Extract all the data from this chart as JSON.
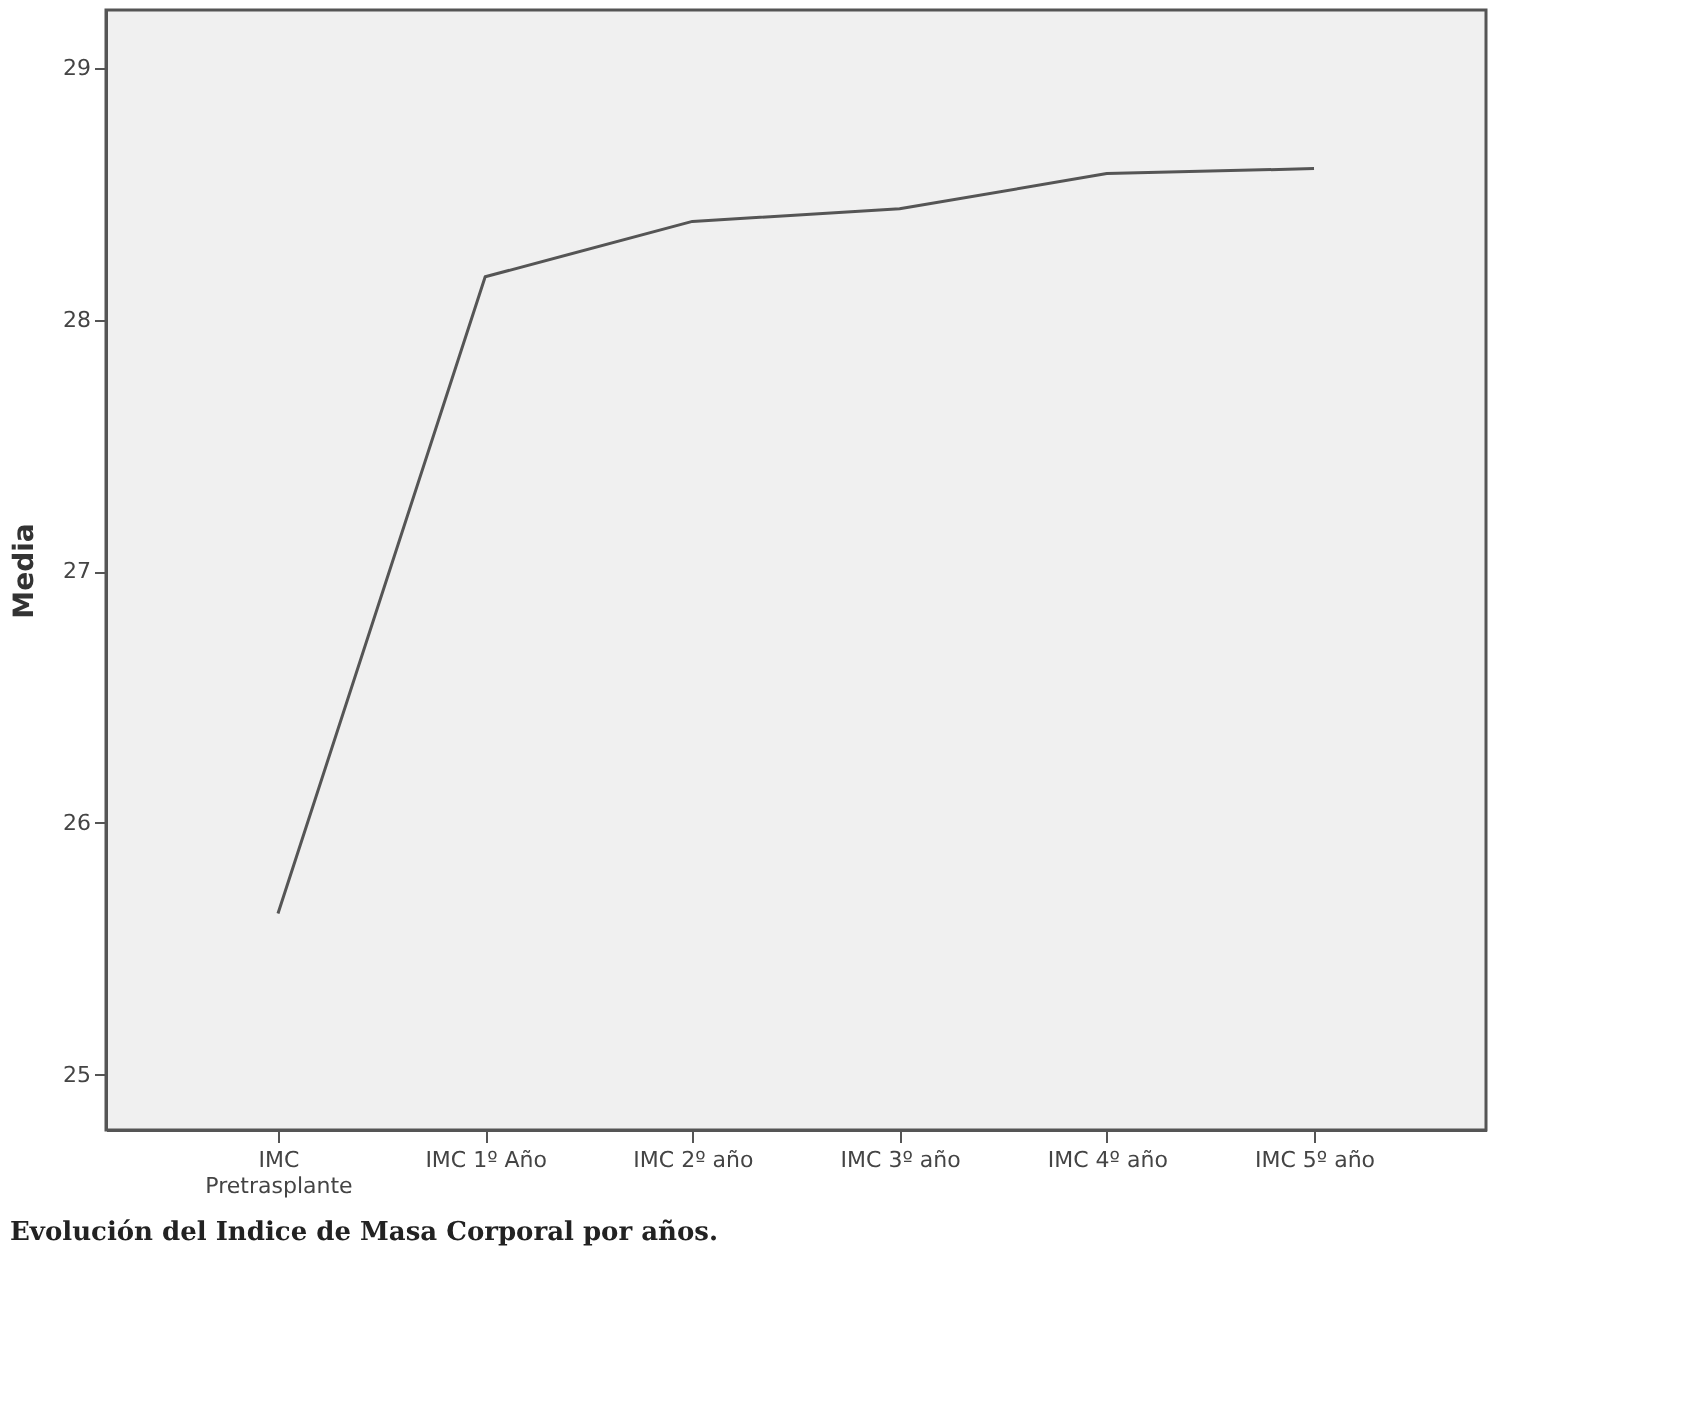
{
  "chart_data": {
    "type": "line",
    "title": "Evolución del Indice de Masa Corporal por años.",
    "ylabel": "Media",
    "categories": [
      "IMC Pretrasplante",
      "IMC 1º Año",
      "IMC 2º año",
      "IMC 3º año",
      "IMC 4º año",
      "IMC 5º año"
    ],
    "series": [
      {
        "color": "#555555",
        "values": [
          25.64,
          28.17,
          28.39,
          28.44,
          28.58,
          28.6
        ]
      }
    ],
    "ylim": [
      24.78,
      29.23
    ],
    "yticks": [
      25,
      26,
      27,
      28,
      29
    ],
    "grid": false,
    "marker": "none",
    "line_style": "solid"
  }
}
